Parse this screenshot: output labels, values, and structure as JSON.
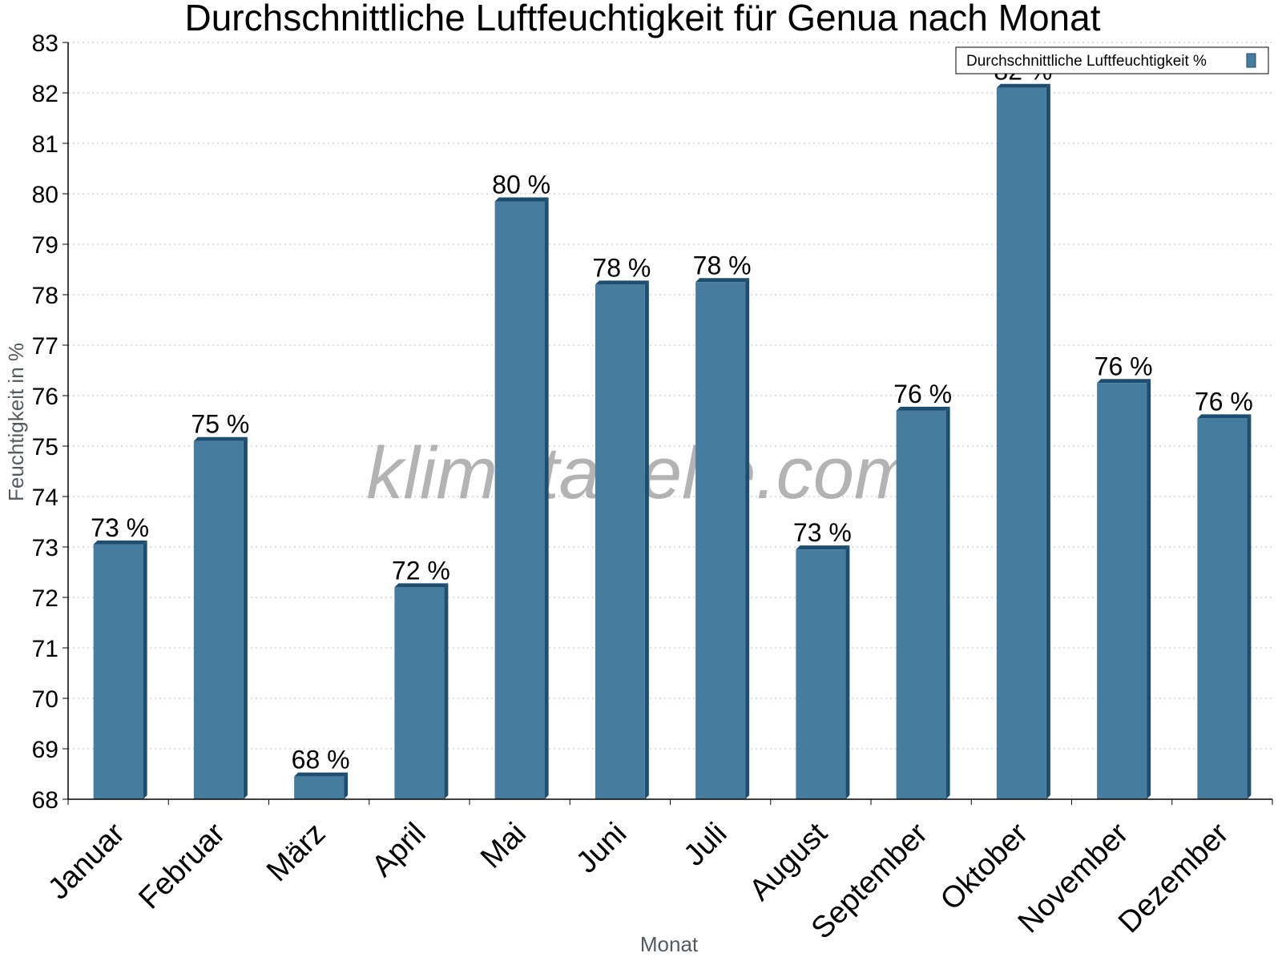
{
  "watermark": "klimatabelle.com",
  "chart_data": {
    "type": "bar",
    "title": "Durchschnittliche Luftfeuchtigkeit für Genua nach Monat",
    "xlabel": "Monat",
    "ylabel": "Feuchtigkeit in %",
    "ylim": [
      68,
      83
    ],
    "yticks": [
      "68",
      "69",
      "70",
      "71",
      "72",
      "73",
      "74",
      "75",
      "76",
      "77",
      "78",
      "79",
      "80",
      "81",
      "82",
      "83"
    ],
    "grid": true,
    "legend_position": "top-right",
    "categories": [
      "Januar",
      "Februar",
      "März",
      "April",
      "Mai",
      "Juni",
      "Juli",
      "August",
      "September",
      "Oktober",
      "November",
      "Dezember"
    ],
    "series": [
      {
        "name": "Durchschnittliche Luftfeuchtigkeit %",
        "color": "#467c9e",
        "values": [
          73.05,
          75.1,
          68.45,
          72.2,
          79.85,
          78.2,
          78.25,
          72.95,
          75.7,
          82.1,
          76.25,
          75.55
        ],
        "labels": [
          "73 %",
          "75 %",
          "68 %",
          "72 %",
          "80 %",
          "78 %",
          "78 %",
          "73 %",
          "76 %",
          "82 %",
          "76 %",
          "76 %"
        ]
      }
    ]
  }
}
